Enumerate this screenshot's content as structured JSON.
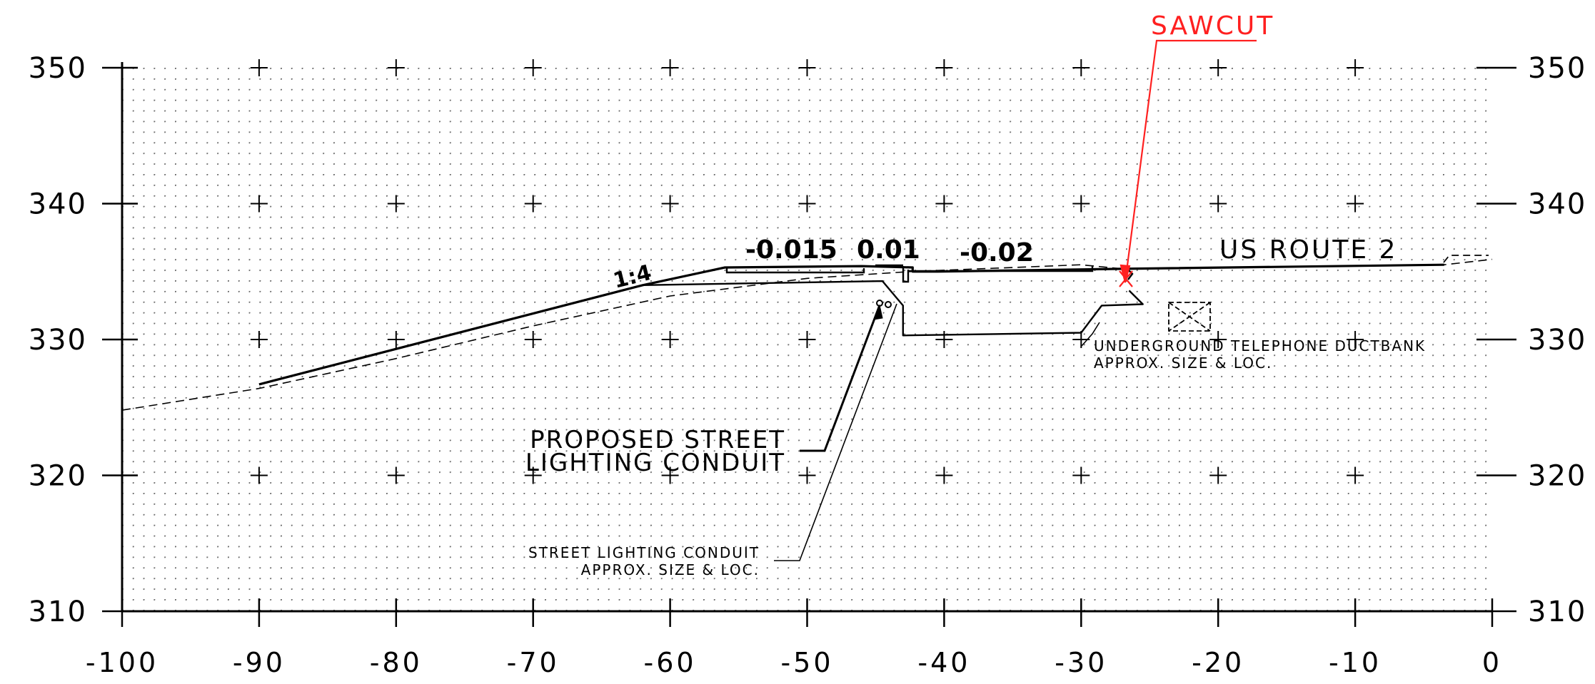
{
  "chart_data": {
    "type": "diagram",
    "title": "",
    "x_axis": {
      "range": [
        -100,
        0
      ],
      "ticks": [
        -100,
        -90,
        -80,
        -70,
        -60,
        -50,
        -40,
        -30,
        -20,
        -10,
        0
      ],
      "tick_labels": [
        "-100",
        "-90",
        "-80",
        "-70",
        "-60",
        "-50",
        "-40",
        "-30",
        "-20",
        "-10",
        "0"
      ]
    },
    "y_axis": {
      "range": [
        310,
        350
      ],
      "ticks": [
        310,
        320,
        330,
        340,
        350
      ],
      "tick_labels": [
        "310",
        "320",
        "330",
        "340",
        "350"
      ]
    },
    "grid": true,
    "proposed_section": [
      [
        -90,
        326.7
      ],
      [
        -62,
        334.0
      ],
      [
        -56,
        335.3
      ],
      [
        -46,
        335.4
      ],
      [
        -42.3,
        335.3
      ],
      [
        -42.3,
        335.0
      ],
      [
        -40.5,
        335.0
      ],
      [
        -27,
        335.2
      ],
      [
        -3.5,
        335.5
      ]
    ],
    "subgrade": [
      [
        -62,
        334.0
      ],
      [
        -44.5,
        334.3
      ],
      [
        -43,
        332.5
      ],
      [
        -43,
        330.3
      ],
      [
        -30,
        330.5
      ],
      [
        -28.5,
        332.5
      ],
      [
        -25.5,
        332.6
      ],
      [
        -26.5,
        333.6
      ]
    ],
    "existing_ground": [
      [
        -100,
        324.8
      ],
      [
        -90,
        326.4
      ],
      [
        -80,
        328.6
      ],
      [
        -70,
        331.0
      ],
      [
        -60,
        333.2
      ],
      [
        -50,
        334.5
      ],
      [
        -42.5,
        335.0
      ],
      [
        -30,
        335.5
      ],
      [
        -27,
        335.2
      ],
      [
        -3.5,
        335.5
      ],
      [
        0,
        335.9
      ]
    ],
    "slope_labels": [
      "1:4",
      "-0.015",
      "0.01",
      "-0.02"
    ],
    "labels": {
      "route": "US ROUTE 2",
      "sawcut": "SAWCUT",
      "proposed_conduit_line1": "PROPOSED STREET",
      "proposed_conduit_line2": "LIGHTING CONDUIT",
      "existing_conduit_line1": "STREET LIGHTING CONDUIT",
      "existing_conduit_line2": "APPROX. SIZE & LOC.",
      "ductbank_line1": "UNDERGROUND TELEPHONE DUCTBANK",
      "ductbank_line2": "APPROX. SIZE & LOC."
    },
    "colors": {
      "line": "#000000",
      "grid_dot": "#555555",
      "sawcut": "#ff2020"
    }
  }
}
